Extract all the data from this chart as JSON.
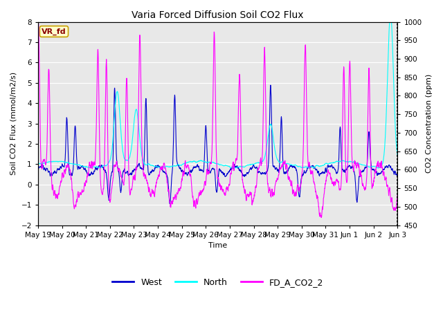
{
  "title": "Varia Forced Diffusion Soil CO2 Flux",
  "xlabel": "Time",
  "ylabel_left": "Soil CO2 Flux (mmol/m2/s)",
  "ylabel_right": "CO2 Concentration (ppm)",
  "ylim_left": [
    -2.0,
    8.0
  ],
  "ylim_right": [
    450,
    1000
  ],
  "yticks_left": [
    -2.0,
    -1.0,
    0.0,
    1.0,
    2.0,
    3.0,
    4.0,
    5.0,
    6.0,
    7.0,
    8.0
  ],
  "yticks_right": [
    450,
    500,
    550,
    600,
    650,
    700,
    750,
    800,
    850,
    900,
    950,
    1000
  ],
  "xtick_labels": [
    "May 19",
    "May 20",
    "May 21",
    "May 22",
    "May 23",
    "May 24",
    "May 25",
    "May 26",
    "May 27",
    "May 28",
    "May 29",
    "May 30",
    "May 31",
    "Jun 1",
    "Jun 2",
    "Jun 3"
  ],
  "west_color": "#0000CD",
  "north_color": "#00FFFF",
  "fd_co2_color": "#FF00FF",
  "vr_fd_box_facecolor": "#FFFFCC",
  "vr_fd_box_edgecolor": "#C8A000",
  "vr_fd_text_color": "#8B0000",
  "background_color": "#E8E8E8",
  "white_color": "#FFFFFF",
  "legend_entries": [
    "West",
    "North",
    "FD_A_CO2_2"
  ],
  "n_points": 2000,
  "seed": 12345,
  "figsize": [
    6.4,
    4.8
  ],
  "dpi": 100
}
